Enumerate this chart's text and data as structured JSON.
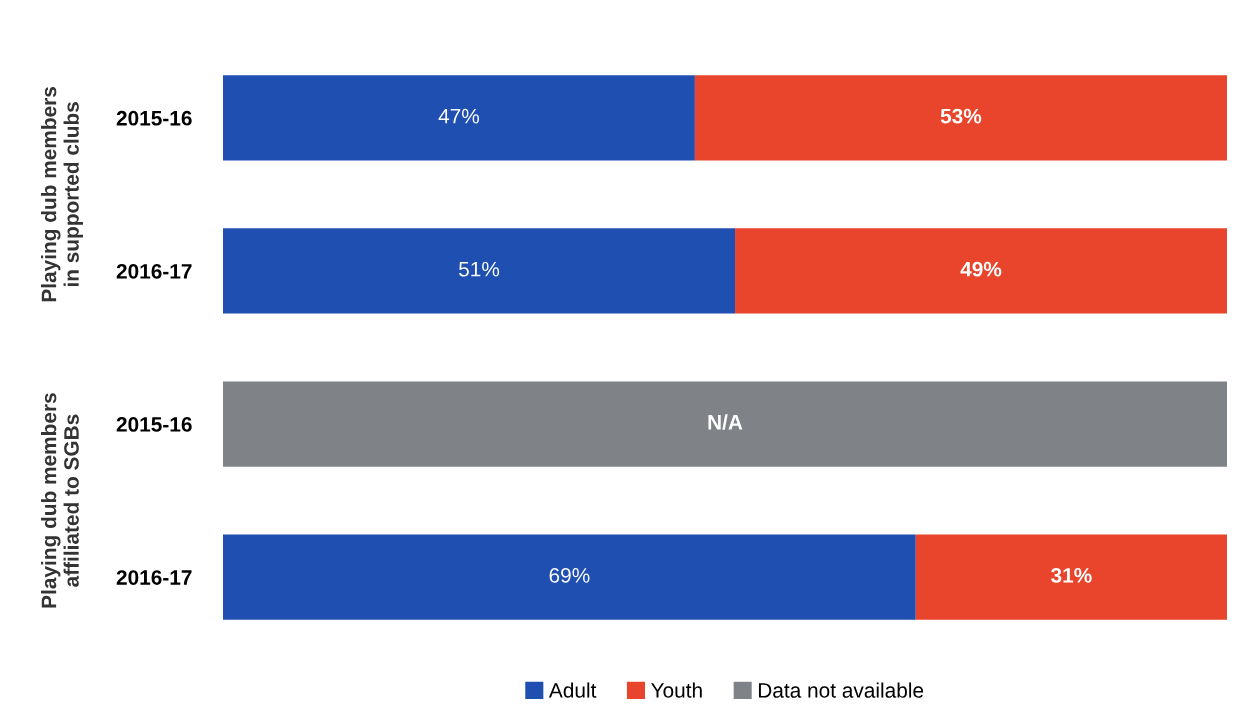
{
  "chart_data": {
    "type": "bar",
    "orientation": "horizontal",
    "stacked": true,
    "categories": [
      "2015-16",
      "2016-17",
      "2015-16",
      "2016-17"
    ],
    "series": [
      {
        "name": "Adult",
        "color": "#1f4fb0",
        "values": [
          47,
          51,
          null,
          69
        ],
        "value_labels": [
          "47%",
          "51%",
          null,
          "69%"
        ]
      },
      {
        "name": "Youth",
        "color": "#e8452c",
        "values": [
          53,
          49,
          null,
          31
        ],
        "value_labels": [
          "53%",
          "49%",
          null,
          "31%"
        ]
      },
      {
        "name": "Data not available",
        "color": "#7f8287",
        "values": [
          null,
          null,
          100,
          null
        ],
        "value_labels": [
          null,
          null,
          "N/A",
          null
        ]
      }
    ],
    "annotations": [
      "Playing dub members in supported clubs",
      "Playing dub members affiliated to SGBs"
    ],
    "tick_labels": "y",
    "legend": "bottom",
    "grid": false
  }
}
